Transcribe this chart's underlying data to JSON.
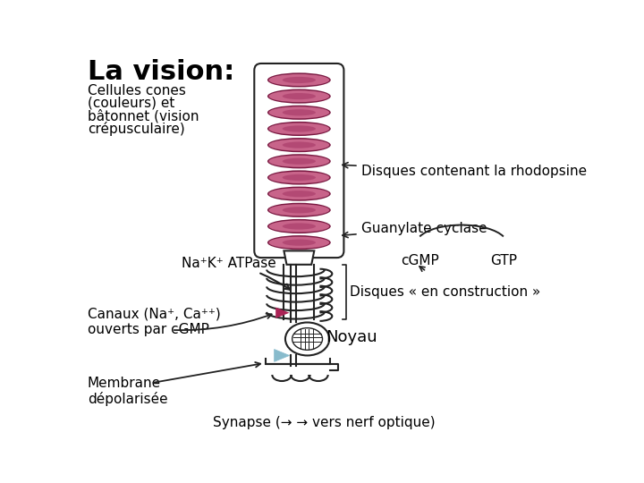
{
  "title": "La vision:",
  "subtitle_lines": [
    "Cellules cones",
    "(couleurs) et",
    "bâtonnet (vision",
    "crépusculaire)"
  ],
  "label_rhodopsine": "Disques contenant la rhodopsine",
  "label_guanylate": "Guanylate cyclase",
  "label_cgmp": "cGMP",
  "label_gtp": "GTP",
  "label_natk": "Na⁺K⁺ ATPase",
  "label_disques_construction": "Disques « en construction »",
  "label_canaux": "Canaux (Na⁺, Ca⁺⁺)\nouverts par cGMP",
  "label_noyau": "Noyau",
  "label_membrane": "Membrane\ndépolarisée",
  "label_synapse": "Synapse (→ → vers nerf optique)",
  "disk_color_outer": "#c8648a",
  "disk_color_inner": "#a03060",
  "disk_edge_color": "#7a1a42",
  "bg_color": "#ffffff",
  "cell_outline_color": "#222222",
  "arrow_color": "#111111",
  "pink_tri_color": "#aa2255",
  "blue_tri_color": "#88bbcc"
}
